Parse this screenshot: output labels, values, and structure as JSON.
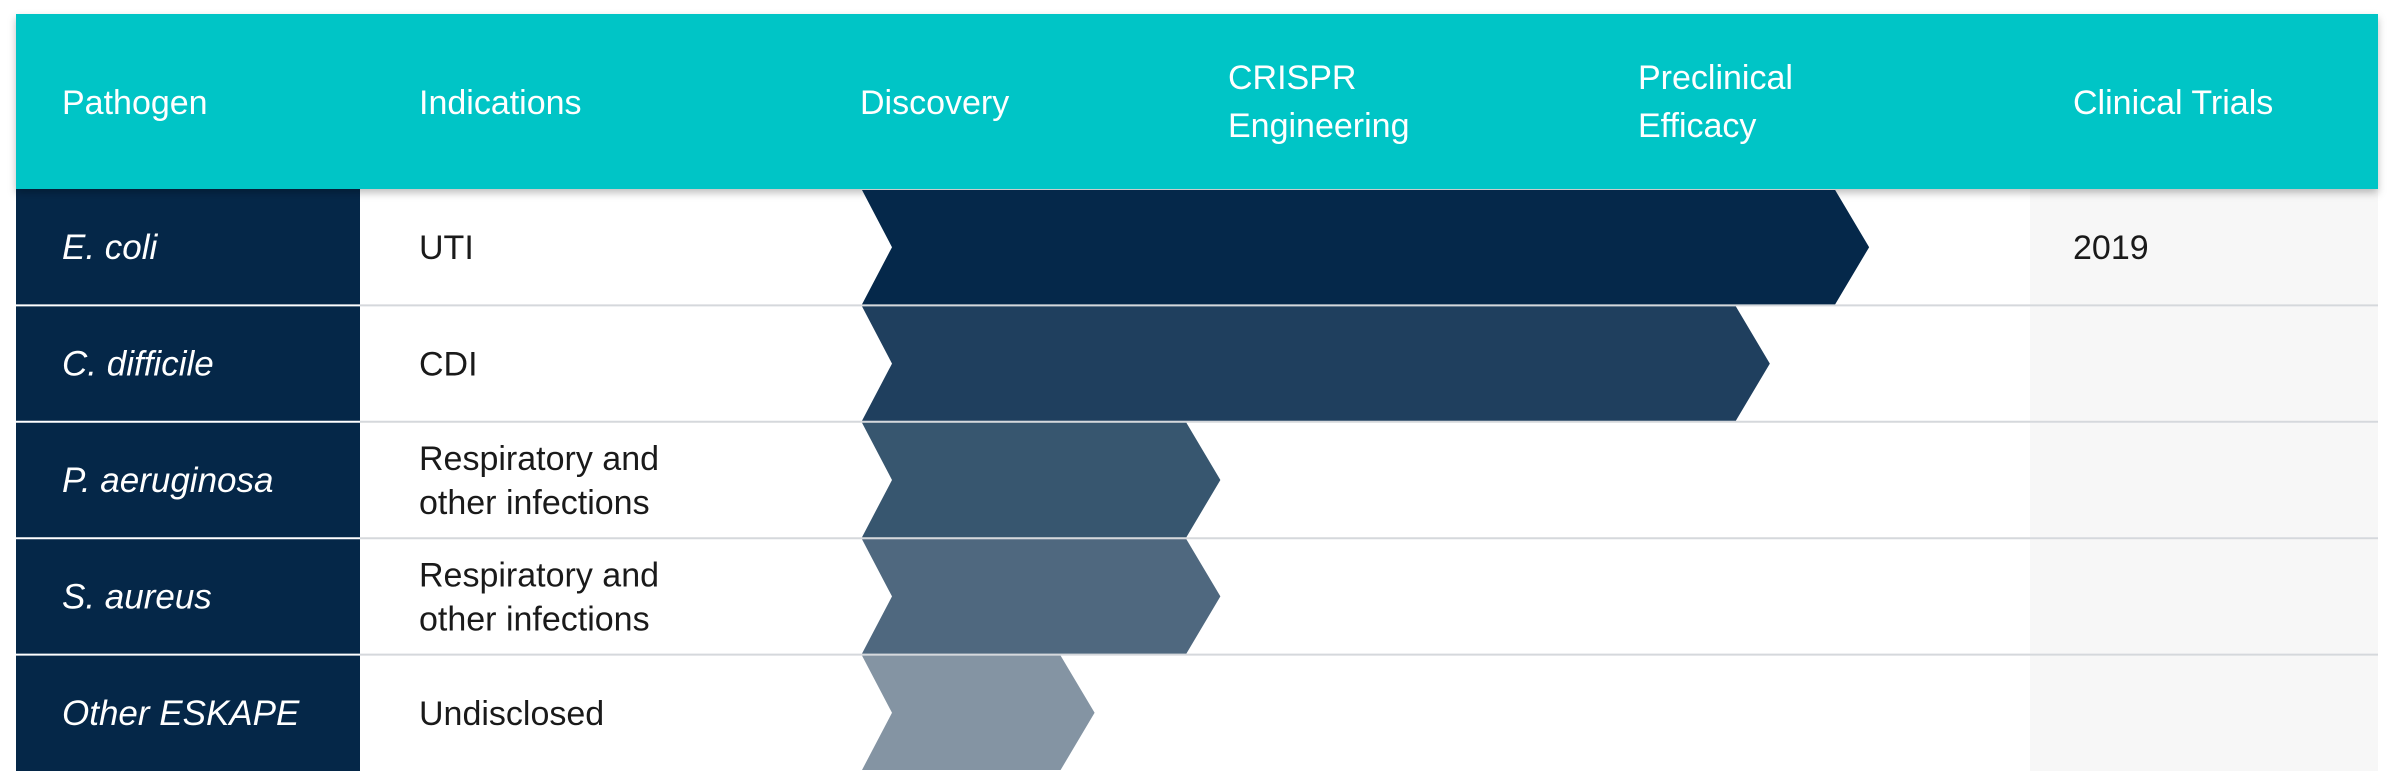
{
  "colors": {
    "header_bg": "#05C5C6",
    "pathogen_bg": "#052748",
    "trials_bg": "#F7F7F7",
    "divider": "#D5D8DC",
    "bar_colors": [
      "#05284A",
      "#1F3F5E",
      "#37566F",
      "#4F687F",
      "#8494A3"
    ]
  },
  "header": {
    "pathogen": "Pathogen",
    "indications": "Indications",
    "discovery": "Discovery",
    "crispr": [
      "CRISPR",
      "Engineering"
    ],
    "preclinical": [
      "Preclinical",
      "Efficacy"
    ],
    "clinical": "Clinical Trials"
  },
  "stages": [
    "Discovery",
    "CRISPR Engineering",
    "Preclinical Efficacy"
  ],
  "rows": [
    {
      "pathogen": "E. coli",
      "indication": [
        "UTI"
      ],
      "clinical": "2019",
      "progress_stages": 2.94
    },
    {
      "pathogen": "C. difficile",
      "indication": [
        "CDI"
      ],
      "clinical": "",
      "progress_stages": 2.64
    },
    {
      "pathogen": "P. aeruginosa",
      "indication": [
        "Respiratory and",
        "other infections"
      ],
      "clinical": "",
      "progress_stages": 0.98
    },
    {
      "pathogen": "S. aureus",
      "indication": [
        "Respiratory and",
        "other infections"
      ],
      "clinical": "",
      "progress_stages": 0.98
    },
    {
      "pathogen": "Other ESKAPE",
      "indication": [
        "Undisclosed"
      ],
      "clinical": "",
      "progress_stages": 0.6
    }
  ]
}
